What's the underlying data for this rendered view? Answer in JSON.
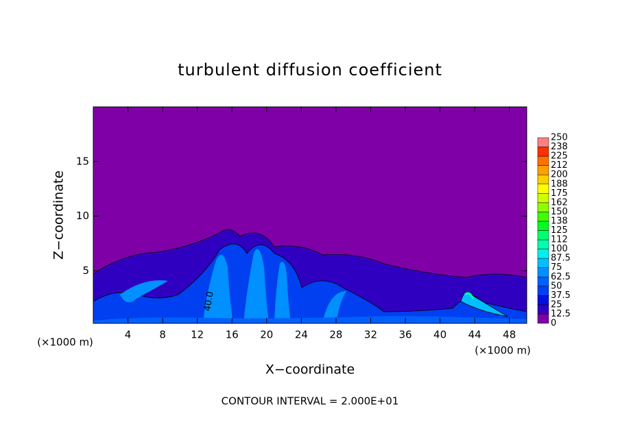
{
  "chart_data": {
    "type": "contour",
    "title": "turbulent diffusion coefficient",
    "xlabel": "X−coordinate",
    "ylabel": "Z−coordinate",
    "x_unit_left": "(×1000 m)",
    "x_unit_right": "(×1000 m)",
    "footer": "CONTOUR INTERVAL = 2.000E+01",
    "annotations": [
      "40.0"
    ],
    "xlim": [
      0,
      50
    ],
    "xticks": [
      4,
      8,
      12,
      16,
      20,
      24,
      28,
      32,
      36,
      40,
      44,
      48
    ],
    "ylim": [
      0.2,
      20
    ],
    "yticks": [
      5,
      10,
      15
    ],
    "colorbar": {
      "levels": [
        0,
        12.5,
        25,
        37.5,
        50,
        62.5,
        75,
        87.5,
        100,
        {
          "value": 112.5,
          "label": "112"
        },
        125,
        {
          "value": 137.5,
          "label": "138"
        },
        150,
        {
          "value": 162.5,
          "label": "162"
        },
        175,
        {
          "value": 187.5,
          "label": "188"
        },
        200,
        {
          "value": 212.5,
          "label": "212"
        },
        225,
        {
          "value": 237.5,
          "label": "238"
        },
        250
      ],
      "colors": [
        "#8000a8",
        "#3000c0",
        "#0010e0",
        "#0040f0",
        "#0060ff",
        "#0090ff",
        "#00c0ff",
        "#00f0f0",
        "#00ffb0",
        "#00ff70",
        "#00ff20",
        "#40ff00",
        "#90ff00",
        "#d0ff00",
        "#ffff00",
        "#ffd000",
        "#ffa000",
        "#ff7000",
        "#ff3000",
        "#ff8080"
      ]
    }
  }
}
